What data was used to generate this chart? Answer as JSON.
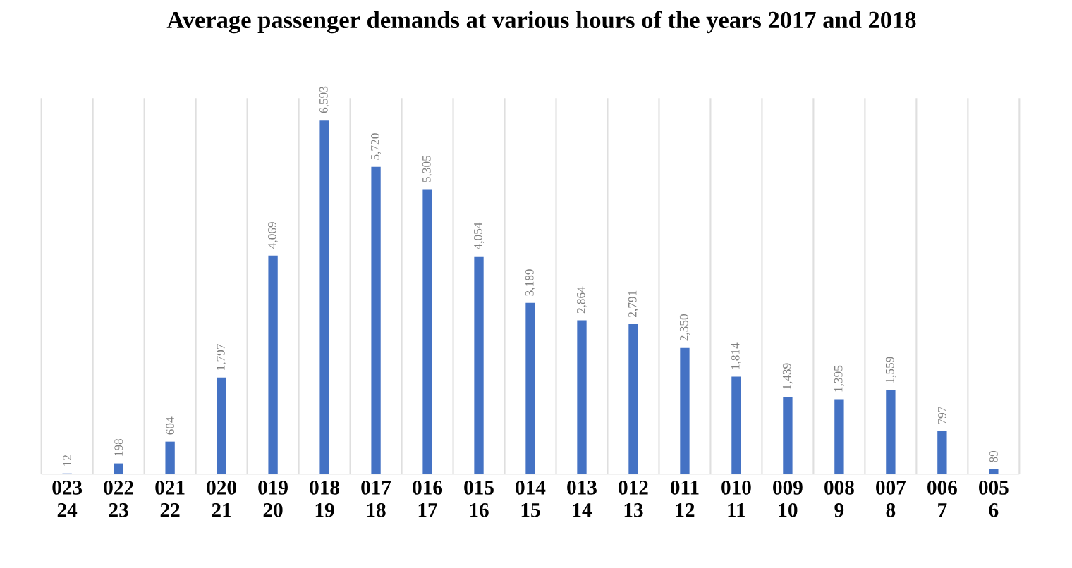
{
  "chart_data": {
    "type": "bar",
    "title": "Average passenger demands at various hours of the years 2017 and 2018",
    "categories": [
      "023 24",
      "022 23",
      "021 22",
      "020 21",
      "019 20",
      "018 19",
      "017 18",
      "016 17",
      "015 16",
      "014 15",
      "013 14",
      "012 13",
      "011 12",
      "010 11",
      "009 10",
      "008 9",
      "007 8",
      "006 7",
      "005 6"
    ],
    "values": [
      12,
      198,
      604,
      1797,
      4069,
      6593,
      5720,
      5305,
      4054,
      3189,
      2864,
      2791,
      2350,
      1814,
      1439,
      1395,
      1559,
      797,
      89
    ],
    "value_labels": [
      "12",
      "198",
      "604",
      "1,797",
      "4,069",
      "6,593",
      "5,720",
      "5,305",
      "4,054",
      "3,189",
      "2,864",
      "2,791",
      "2,350",
      "1,814",
      "1,439",
      "1,395",
      "1,559",
      "797",
      "89"
    ],
    "color": "#4472c4",
    "ylim": [
      0,
      7000
    ],
    "grid": "x"
  }
}
